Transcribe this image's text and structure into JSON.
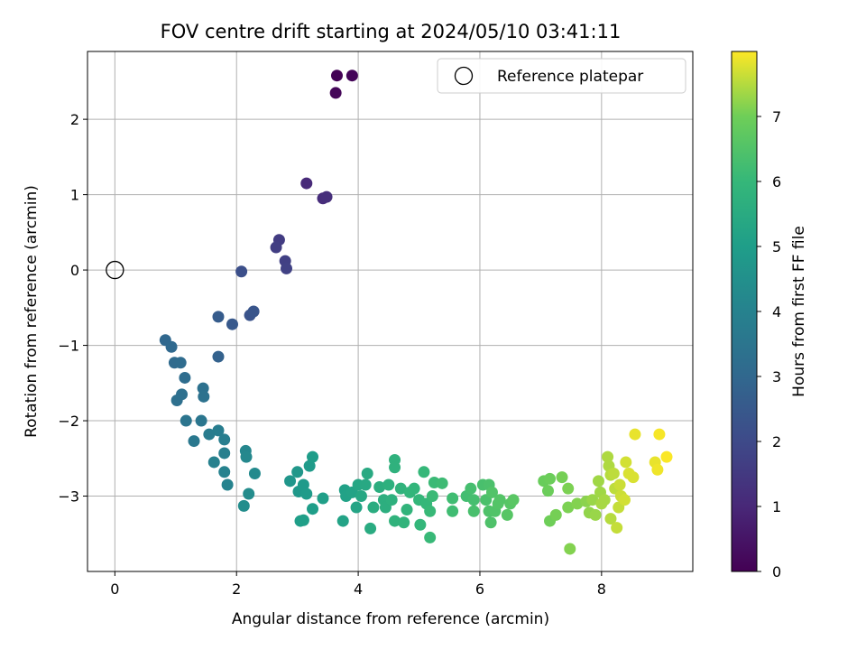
{
  "chart_data": {
    "type": "scatter",
    "title": "FOV centre drift starting at 2024/05/10 03:41:11",
    "xlabel": "Angular distance from reference (arcmin)",
    "ylabel": "Rotation from reference (arcmin)",
    "xlim": [
      -0.45,
      9.5
    ],
    "ylim": [
      -4.0,
      2.9
    ],
    "xticks": [
      0,
      2,
      4,
      6,
      8
    ],
    "yticks": [
      -3,
      -2,
      -1,
      0,
      1,
      2
    ],
    "grid": true,
    "colormap": "viridis",
    "colorbar": {
      "label": "Hours from first FF file",
      "range": [
        0,
        8
      ],
      "ticks": [
        0,
        1,
        2,
        3,
        4,
        5,
        6,
        7
      ]
    },
    "legend": {
      "position": "top-right",
      "entries": [
        {
          "label": "Reference platepar",
          "marker": "open-circle"
        }
      ]
    },
    "reference_point": {
      "x": 0,
      "y": 0
    },
    "points": [
      {
        "x": 3.65,
        "y": 2.58,
        "h": 0.05
      },
      {
        "x": 3.9,
        "y": 2.58,
        "h": 0.1
      },
      {
        "x": 3.63,
        "y": 2.35,
        "h": 0.15
      },
      {
        "x": 3.15,
        "y": 1.15,
        "h": 1.05
      },
      {
        "x": 3.42,
        "y": 0.95,
        "h": 1.15
      },
      {
        "x": 3.48,
        "y": 0.97,
        "h": 1.2
      },
      {
        "x": 2.7,
        "y": 0.4,
        "h": 1.6
      },
      {
        "x": 2.65,
        "y": 0.3,
        "h": 1.65
      },
      {
        "x": 2.8,
        "y": 0.12,
        "h": 1.7
      },
      {
        "x": 2.82,
        "y": 0.02,
        "h": 1.75
      },
      {
        "x": 2.08,
        "y": -0.02,
        "h": 2.15
      },
      {
        "x": 2.22,
        "y": -0.6,
        "h": 2.3
      },
      {
        "x": 2.28,
        "y": -0.55,
        "h": 2.35
      },
      {
        "x": 1.7,
        "y": -0.62,
        "h": 2.6
      },
      {
        "x": 1.93,
        "y": -0.72,
        "h": 2.5
      },
      {
        "x": 1.7,
        "y": -1.15,
        "h": 2.8
      },
      {
        "x": 0.83,
        "y": -0.93,
        "h": 3.0
      },
      {
        "x": 0.93,
        "y": -1.02,
        "h": 3.05
      },
      {
        "x": 0.98,
        "y": -1.23,
        "h": 3.1
      },
      {
        "x": 1.08,
        "y": -1.23,
        "h": 3.15
      },
      {
        "x": 1.15,
        "y": -1.43,
        "h": 3.2
      },
      {
        "x": 1.02,
        "y": -1.73,
        "h": 3.3
      },
      {
        "x": 1.1,
        "y": -1.65,
        "h": 3.3
      },
      {
        "x": 1.45,
        "y": -1.57,
        "h": 3.35
      },
      {
        "x": 1.46,
        "y": -1.68,
        "h": 3.4
      },
      {
        "x": 1.17,
        "y": -2.0,
        "h": 3.5
      },
      {
        "x": 1.42,
        "y": -2.0,
        "h": 3.55
      },
      {
        "x": 1.3,
        "y": -2.27,
        "h": 3.6
      },
      {
        "x": 1.55,
        "y": -2.18,
        "h": 3.75
      },
      {
        "x": 1.7,
        "y": -2.13,
        "h": 3.8
      },
      {
        "x": 1.8,
        "y": -2.25,
        "h": 3.85
      },
      {
        "x": 1.8,
        "y": -2.43,
        "h": 3.9
      },
      {
        "x": 1.63,
        "y": -2.55,
        "h": 3.95
      },
      {
        "x": 1.8,
        "y": -2.68,
        "h": 4.0
      },
      {
        "x": 1.85,
        "y": -2.85,
        "h": 4.05
      },
      {
        "x": 2.15,
        "y": -2.4,
        "h": 4.15
      },
      {
        "x": 2.16,
        "y": -2.48,
        "h": 4.2
      },
      {
        "x": 2.3,
        "y": -2.7,
        "h": 4.3
      },
      {
        "x": 2.2,
        "y": -2.97,
        "h": 4.35
      },
      {
        "x": 2.12,
        "y": -3.13,
        "h": 4.4
      },
      {
        "x": 2.88,
        "y": -2.8,
        "h": 4.7
      },
      {
        "x": 3.0,
        "y": -2.68,
        "h": 4.75
      },
      {
        "x": 3.02,
        "y": -2.94,
        "h": 4.8
      },
      {
        "x": 3.1,
        "y": -2.85,
        "h": 4.85
      },
      {
        "x": 3.15,
        "y": -2.97,
        "h": 4.9
      },
      {
        "x": 3.2,
        "y": -2.6,
        "h": 4.9
      },
      {
        "x": 3.25,
        "y": -2.48,
        "h": 4.95
      },
      {
        "x": 3.25,
        "y": -3.17,
        "h": 5.0
      },
      {
        "x": 3.05,
        "y": -3.33,
        "h": 5.0
      },
      {
        "x": 3.1,
        "y": -3.32,
        "h": 5.05
      },
      {
        "x": 3.42,
        "y": -3.03,
        "h": 5.05
      },
      {
        "x": 3.78,
        "y": -2.92,
        "h": 5.1
      },
      {
        "x": 3.8,
        "y": -3.0,
        "h": 5.15
      },
      {
        "x": 3.9,
        "y": -2.95,
        "h": 5.2
      },
      {
        "x": 3.75,
        "y": -3.33,
        "h": 5.2
      },
      {
        "x": 3.97,
        "y": -3.15,
        "h": 5.25
      },
      {
        "x": 4.0,
        "y": -2.85,
        "h": 5.3
      },
      {
        "x": 4.05,
        "y": -3.0,
        "h": 5.35
      },
      {
        "x": 4.12,
        "y": -2.85,
        "h": 5.4
      },
      {
        "x": 4.15,
        "y": -2.7,
        "h": 5.45
      },
      {
        "x": 4.2,
        "y": -3.43,
        "h": 5.5
      },
      {
        "x": 4.25,
        "y": -3.15,
        "h": 5.55
      },
      {
        "x": 4.35,
        "y": -2.88,
        "h": 5.6
      },
      {
        "x": 4.42,
        "y": -3.05,
        "h": 5.65
      },
      {
        "x": 4.45,
        "y": -3.15,
        "h": 5.65
      },
      {
        "x": 4.5,
        "y": -2.85,
        "h": 5.7
      },
      {
        "x": 4.55,
        "y": -3.05,
        "h": 5.7
      },
      {
        "x": 4.6,
        "y": -2.52,
        "h": 5.75
      },
      {
        "x": 4.6,
        "y": -2.62,
        "h": 5.75
      },
      {
        "x": 4.6,
        "y": -3.33,
        "h": 5.8
      },
      {
        "x": 4.7,
        "y": -2.9,
        "h": 5.8
      },
      {
        "x": 4.75,
        "y": -3.35,
        "h": 5.85
      },
      {
        "x": 4.8,
        "y": -3.18,
        "h": 5.85
      },
      {
        "x": 4.85,
        "y": -2.95,
        "h": 5.9
      },
      {
        "x": 4.92,
        "y": -2.9,
        "h": 5.9
      },
      {
        "x": 5.0,
        "y": -3.05,
        "h": 5.95
      },
      {
        "x": 5.02,
        "y": -3.38,
        "h": 5.95
      },
      {
        "x": 5.08,
        "y": -2.68,
        "h": 6.0
      },
      {
        "x": 5.12,
        "y": -3.1,
        "h": 6.0
      },
      {
        "x": 5.18,
        "y": -3.2,
        "h": 6.05
      },
      {
        "x": 5.18,
        "y": -3.55,
        "h": 6.05
      },
      {
        "x": 5.22,
        "y": -3.0,
        "h": 6.1
      },
      {
        "x": 5.25,
        "y": -2.82,
        "h": 6.1
      },
      {
        "x": 5.38,
        "y": -2.83,
        "h": 6.15
      },
      {
        "x": 5.55,
        "y": -3.03,
        "h": 6.2
      },
      {
        "x": 5.55,
        "y": -3.2,
        "h": 6.2
      },
      {
        "x": 5.78,
        "y": -3.0,
        "h": 6.25
      },
      {
        "x": 5.85,
        "y": -2.9,
        "h": 6.3
      },
      {
        "x": 5.9,
        "y": -3.05,
        "h": 6.3
      },
      {
        "x": 5.9,
        "y": -3.2,
        "h": 6.35
      },
      {
        "x": 6.05,
        "y": -2.85,
        "h": 6.35
      },
      {
        "x": 6.1,
        "y": -3.05,
        "h": 6.4
      },
      {
        "x": 6.15,
        "y": -2.85,
        "h": 6.4
      },
      {
        "x": 6.15,
        "y": -3.2,
        "h": 6.45
      },
      {
        "x": 6.18,
        "y": -3.35,
        "h": 6.45
      },
      {
        "x": 6.2,
        "y": -2.95,
        "h": 6.5
      },
      {
        "x": 6.25,
        "y": -3.2,
        "h": 6.5
      },
      {
        "x": 6.3,
        "y": -3.1,
        "h": 6.55
      },
      {
        "x": 6.33,
        "y": -3.05,
        "h": 6.55
      },
      {
        "x": 6.45,
        "y": -3.25,
        "h": 6.6
      },
      {
        "x": 6.5,
        "y": -3.1,
        "h": 6.6
      },
      {
        "x": 6.55,
        "y": -3.05,
        "h": 6.65
      },
      {
        "x": 7.05,
        "y": -2.8,
        "h": 6.9
      },
      {
        "x": 7.12,
        "y": -2.93,
        "h": 6.95
      },
      {
        "x": 7.15,
        "y": -2.77,
        "h": 6.95
      },
      {
        "x": 7.15,
        "y": -3.33,
        "h": 7.0
      },
      {
        "x": 7.25,
        "y": -3.25,
        "h": 7.05
      },
      {
        "x": 7.35,
        "y": -2.75,
        "h": 7.05
      },
      {
        "x": 7.45,
        "y": -2.9,
        "h": 7.1
      },
      {
        "x": 7.45,
        "y": -3.15,
        "h": 7.1
      },
      {
        "x": 7.48,
        "y": -3.7,
        "h": 7.15
      },
      {
        "x": 7.6,
        "y": -3.1,
        "h": 7.15
      },
      {
        "x": 7.75,
        "y": -3.07,
        "h": 7.2
      },
      {
        "x": 7.8,
        "y": -3.22,
        "h": 7.25
      },
      {
        "x": 7.85,
        "y": -3.05,
        "h": 7.3
      },
      {
        "x": 7.9,
        "y": -3.25,
        "h": 7.3
      },
      {
        "x": 7.95,
        "y": -2.8,
        "h": 7.35
      },
      {
        "x": 7.98,
        "y": -2.95,
        "h": 7.35
      },
      {
        "x": 8.0,
        "y": -3.1,
        "h": 7.4
      },
      {
        "x": 8.05,
        "y": -3.05,
        "h": 7.4
      },
      {
        "x": 8.1,
        "y": -2.48,
        "h": 7.45
      },
      {
        "x": 8.12,
        "y": -2.6,
        "h": 7.45
      },
      {
        "x": 8.15,
        "y": -2.72,
        "h": 7.5
      },
      {
        "x": 8.15,
        "y": -3.3,
        "h": 7.5
      },
      {
        "x": 8.2,
        "y": -2.7,
        "h": 7.55
      },
      {
        "x": 8.22,
        "y": -2.9,
        "h": 7.55
      },
      {
        "x": 8.25,
        "y": -3.42,
        "h": 7.6
      },
      {
        "x": 8.28,
        "y": -3.15,
        "h": 7.6
      },
      {
        "x": 8.3,
        "y": -2.85,
        "h": 7.65
      },
      {
        "x": 8.32,
        "y": -3.0,
        "h": 7.65
      },
      {
        "x": 8.38,
        "y": -3.05,
        "h": 7.7
      },
      {
        "x": 8.4,
        "y": -2.55,
        "h": 7.7
      },
      {
        "x": 8.45,
        "y": -2.7,
        "h": 7.75
      },
      {
        "x": 8.52,
        "y": -2.75,
        "h": 7.75
      },
      {
        "x": 8.55,
        "y": -2.18,
        "h": 7.85
      },
      {
        "x": 8.88,
        "y": -2.55,
        "h": 7.85
      },
      {
        "x": 8.92,
        "y": -2.65,
        "h": 7.9
      },
      {
        "x": 8.95,
        "y": -2.18,
        "h": 7.95
      },
      {
        "x": 9.07,
        "y": -2.48,
        "h": 7.98
      }
    ]
  }
}
